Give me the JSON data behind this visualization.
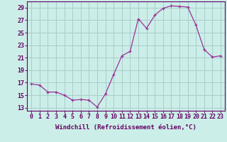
{
  "hours": [
    0,
    1,
    2,
    3,
    4,
    5,
    6,
    7,
    8,
    9,
    10,
    11,
    12,
    13,
    14,
    15,
    16,
    17,
    18,
    19,
    20,
    21,
    22,
    23
  ],
  "values": [
    16.8,
    16.6,
    15.5,
    15.5,
    15.0,
    14.2,
    14.3,
    14.2,
    13.1,
    15.2,
    18.3,
    21.3,
    22.0,
    27.2,
    25.7,
    27.8,
    28.9,
    29.3,
    29.2,
    29.1,
    26.2,
    22.3,
    21.1,
    21.3
  ],
  "line_color": "#993399",
  "background_color": "#cceee8",
  "grid_color": "#aacccc",
  "xlabel": "Windchill (Refroidissement éolien,°C)",
  "xlim": [
    -0.5,
    23.5
  ],
  "ylim": [
    12.5,
    30.0
  ],
  "yticks": [
    13,
    15,
    17,
    19,
    21,
    23,
    25,
    27,
    29
  ],
  "xticks": [
    0,
    1,
    2,
    3,
    4,
    5,
    6,
    7,
    8,
    9,
    10,
    11,
    12,
    13,
    14,
    15,
    16,
    17,
    18,
    19,
    20,
    21,
    22,
    23
  ],
  "axes_color": "#660066",
  "label_fontsize": 6.5,
  "tick_fontsize": 6
}
